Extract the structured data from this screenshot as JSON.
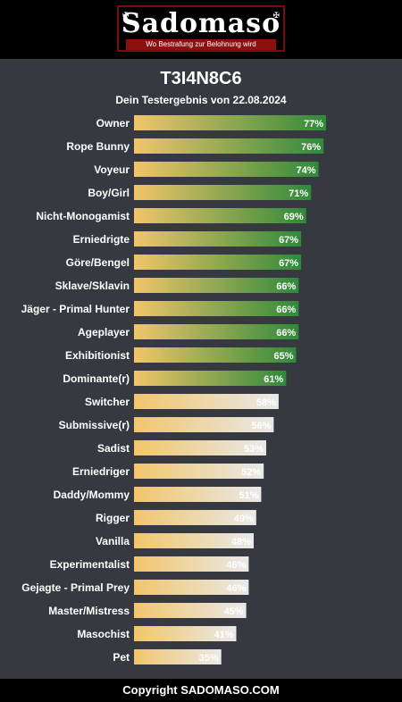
{
  "logo": {
    "name": "Sadomaso",
    "tagline": "Wo Bestrafung zur Belohnung wird",
    "ornament": "✠"
  },
  "header": {
    "title": "T3I4N8C6",
    "subtitle": "Dein Testergebnis von 22.08.2024"
  },
  "chart_data": {
    "type": "bar",
    "orientation": "horizontal",
    "value_unit": "%",
    "xlim": [
      0,
      100
    ],
    "categories": [
      "Owner",
      "Rope Bunny",
      "Voyeur",
      "Boy/Girl",
      "Nicht-Monogamist",
      "Erniedrigte",
      "Göre/Bengel",
      "Sklave/Sklavin",
      "Jäger - Primal Hunter",
      "Ageplayer",
      "Exhibitionist",
      "Dominante(r)",
      "Switcher",
      "Submissive(r)",
      "Sadist",
      "Erniedriger",
      "Daddy/Mommy",
      "Rigger",
      "Vanilla",
      "Experimentalist",
      "Gejagte - Primal Prey",
      "Master/Mistress",
      "Masochist",
      "Pet"
    ],
    "values": [
      77,
      76,
      74,
      71,
      69,
      67,
      67,
      66,
      66,
      66,
      65,
      61,
      58,
      56,
      53,
      52,
      51,
      49,
      48,
      46,
      46,
      45,
      41,
      35
    ],
    "colors": {
      "start": "#f2c56a",
      "high_end": "#2f8a3a",
      "low_end": "#e9e9e9",
      "threshold": 60
    }
  },
  "footer": {
    "text": "Copyright SADOMASO.COM"
  }
}
